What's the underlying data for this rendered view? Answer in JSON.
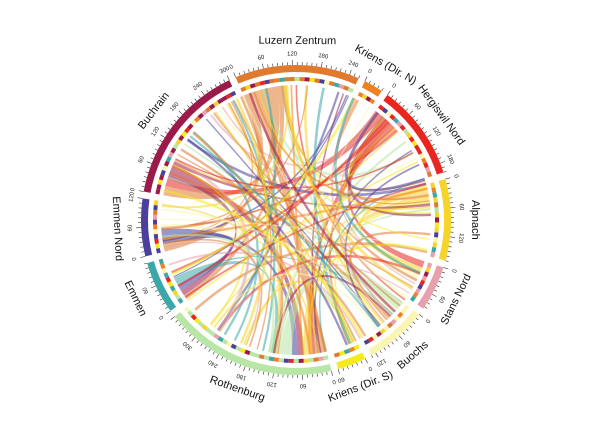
{
  "diagram": {
    "type": "chord",
    "axis_labels_visible": [
      "0",
      "60",
      "120",
      "180",
      "240",
      "300"
    ],
    "sectors": [
      {
        "id": "luzern-zentrum",
        "name": "Luzern Zentrum",
        "color": "#e07a2f",
        "total": 260
      },
      {
        "id": "kriens-dir-n",
        "name": "Kriens (Dir. N)",
        "color": "#f08020",
        "total": 40
      },
      {
        "id": "hergiswil-nord",
        "name": "Hergiswil Nord",
        "color": "#e8261f",
        "total": 200
      },
      {
        "id": "alpnach",
        "name": "Alpnach",
        "color": "#f7d42a",
        "total": 170
      },
      {
        "id": "stans-nord",
        "name": "Stans Nord",
        "color": "#e8a0ac",
        "total": 95
      },
      {
        "id": "buochs",
        "name": "Buochs",
        "color": "#fbf5b2",
        "total": 130
      },
      {
        "id": "kriens-dir-s",
        "name": "Kriens (Dir. S)",
        "color": "#f6ea1c",
        "total": 60
      },
      {
        "id": "rothenburg",
        "name": "Rothenburg",
        "color": "#b7e6a6",
        "total": 360
      },
      {
        "id": "emmen",
        "name": "Emmen",
        "color": "#3aa7a8",
        "total": 110
      },
      {
        "id": "emmen-nord",
        "name": "Emmen Nord",
        "color": "#4a3f9a",
        "total": 120
      },
      {
        "id": "buchrain",
        "name": "Buchrain",
        "color": "#9c1a4a",
        "total": 300
      }
    ],
    "flows": [
      {
        "from": "luzern-zentrum",
        "to": "emmen-nord",
        "value": 40,
        "color": "#e07a2f"
      },
      {
        "from": "luzern-zentrum",
        "to": "rothenburg",
        "value": 60,
        "color": "#e07a2f"
      },
      {
        "from": "luzern-zentrum",
        "to": "buchrain",
        "value": 50,
        "color": "#e07a2f"
      },
      {
        "from": "luzern-zentrum",
        "to": "emmen",
        "value": 25,
        "color": "#e07a2f"
      },
      {
        "from": "hergiswil-nord",
        "to": "buchrain",
        "value": 40,
        "color": "#e8261f"
      },
      {
        "from": "hergiswil-nord",
        "to": "stans-nord",
        "value": 35,
        "color": "#e8261f"
      },
      {
        "from": "hergiswil-nord",
        "to": "rothenburg",
        "value": 30,
        "color": "#e8261f"
      },
      {
        "from": "alpnach",
        "to": "stans-nord",
        "value": 40,
        "color": "#f7d42a"
      },
      {
        "from": "alpnach",
        "to": "rothenburg",
        "value": 30,
        "color": "#f7d42a"
      },
      {
        "from": "buchrain",
        "to": "emmen",
        "value": 30,
        "color": "#9c1a4a"
      },
      {
        "from": "buchrain",
        "to": "rothenburg",
        "value": 35,
        "color": "#9c1a4a"
      },
      {
        "from": "emmen-nord",
        "to": "emmen",
        "value": 35,
        "color": "#4a3f9a"
      },
      {
        "from": "emmen-nord",
        "to": "rothenburg",
        "value": 30,
        "color": "#4a3f9a"
      },
      {
        "from": "rothenburg",
        "to": "buochs",
        "value": 50,
        "color": "#b7e6a6"
      },
      {
        "from": "rothenburg",
        "to": "kriens-dir-s",
        "value": 20,
        "color": "#b7e6a6"
      },
      {
        "from": "buochs",
        "to": "stans-nord",
        "value": 25,
        "color": "#fbf5b2"
      },
      {
        "from": "emmen",
        "to": "rothenburg",
        "value": 25,
        "color": "#3aa7a8"
      },
      {
        "from": "kriens-dir-n",
        "to": "hergiswil-nord",
        "value": 15,
        "color": "#f08020"
      },
      {
        "from": "kriens-dir-s",
        "to": "alpnach",
        "value": 15,
        "color": "#f6ea1c"
      },
      {
        "from": "buchrain",
        "to": "alpnach",
        "value": 15,
        "color": "#9c1a4a"
      },
      {
        "from": "luzern-zentrum",
        "to": "stans-nord",
        "value": 15,
        "color": "#e07a2f"
      },
      {
        "from": "hergiswil-nord",
        "to": "emmen-nord",
        "value": 12,
        "color": "#e8261f"
      },
      {
        "from": "alpnach",
        "to": "buchrain",
        "value": 10,
        "color": "#f7d42a"
      },
      {
        "from": "emmen",
        "to": "buochs",
        "value": 10,
        "color": "#3aa7a8"
      },
      {
        "from": "rothenburg",
        "to": "alpnach",
        "value": 12,
        "color": "#b7e6a6"
      }
    ]
  }
}
